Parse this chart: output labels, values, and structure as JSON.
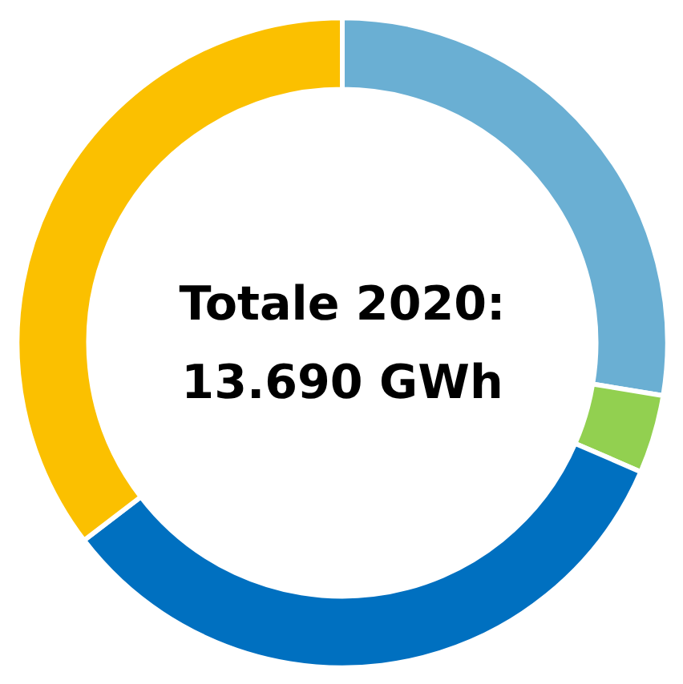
{
  "chart_data": {
    "type": "donut",
    "title": "Totale 2020:\n13.690 GWh",
    "categories": [
      null,
      null,
      null,
      null
    ],
    "values": [
      27.6,
      3.9,
      33.1,
      35.4
    ],
    "colors": [
      "#6aafd3",
      "#92d050",
      "#0070c0",
      "#fbc000"
    ]
  }
}
